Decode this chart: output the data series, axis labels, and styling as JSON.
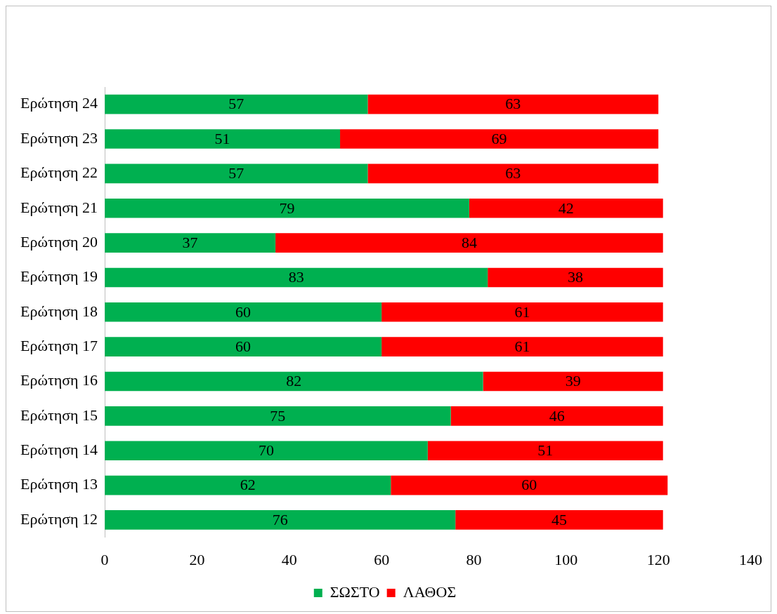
{
  "chart_data": {
    "type": "bar",
    "orientation": "horizontal",
    "stacked": true,
    "categories": [
      "Ερώτηση 24",
      "Ερώτηση 23",
      "Ερώτηση 22",
      "Ερώτηση 21",
      "Ερώτηση 20",
      "Ερώτηση 19",
      "Ερώτηση 18",
      "Ερώτηση 17",
      "Ερώτηση 16",
      "Ερώτηση 15",
      "Ερώτηση 14",
      "Ερώτηση 13",
      "Ερώτηση 12"
    ],
    "series": [
      {
        "name": "ΣΩΣΤΟ",
        "color": "#00b050",
        "values": [
          57,
          51,
          57,
          79,
          37,
          83,
          60,
          60,
          82,
          75,
          70,
          62,
          76
        ]
      },
      {
        "name": "ΛΑΘΟΣ",
        "color": "#ff0000",
        "values": [
          63,
          69,
          63,
          42,
          84,
          38,
          61,
          61,
          39,
          46,
          51,
          60,
          45
        ]
      }
    ],
    "xlim": [
      0,
      140
    ],
    "xticks": [
      0,
      20,
      40,
      60,
      80,
      100,
      120,
      140
    ],
    "legend": "bottom",
    "data_labels": true
  }
}
